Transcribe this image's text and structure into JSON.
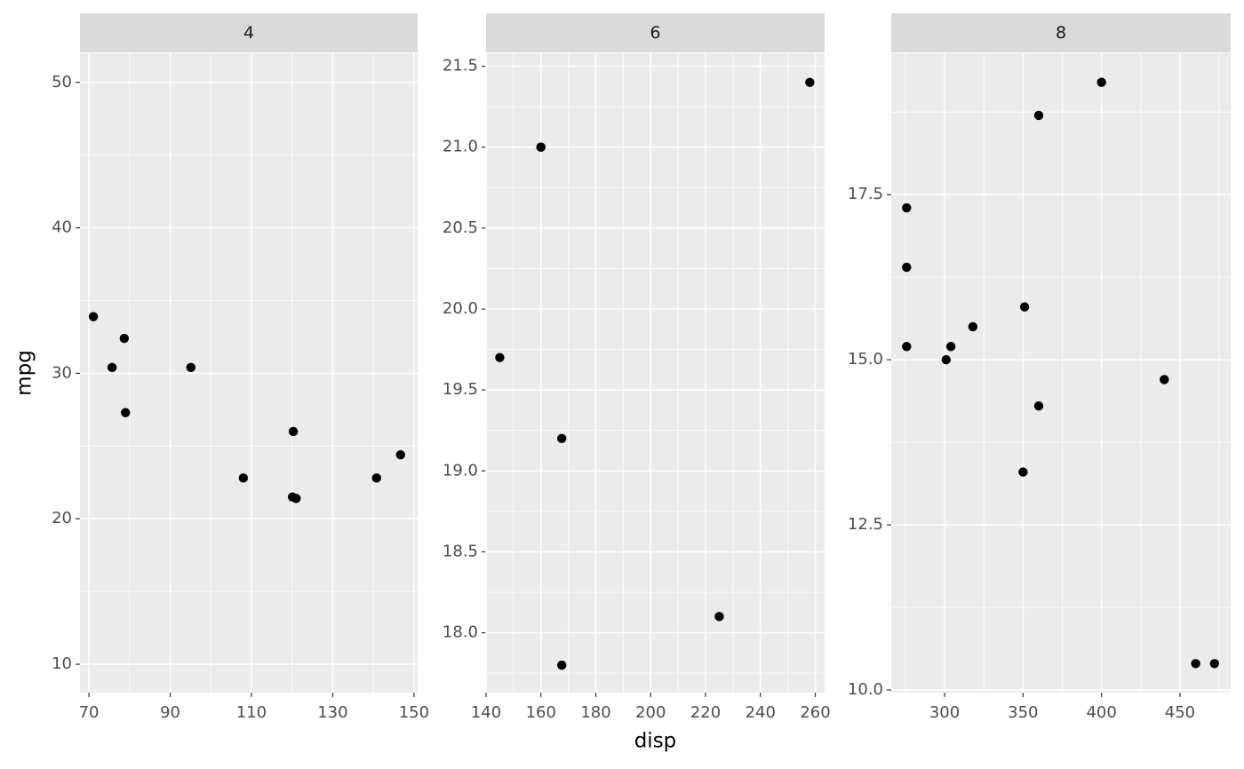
{
  "chart_data": [
    {
      "type": "scatter",
      "title": "4",
      "ylabel": "mpg",
      "color": "#000000",
      "x": [
        108,
        146.7,
        140.8,
        78.7,
        75.7,
        71.1,
        120.1,
        79.0,
        120.3,
        95.1,
        121.0
      ],
      "y": [
        22.8,
        24.4,
        22.8,
        32.4,
        30.4,
        33.9,
        21.5,
        27.3,
        26.0,
        30.4,
        21.4
      ],
      "xlim": [
        67.8,
        150.9
      ],
      "ylim": [
        8.05,
        52.0
      ],
      "xticks": [
        70,
        90,
        110,
        130,
        150
      ],
      "xminor": [
        80,
        100,
        120,
        140
      ],
      "yticks": [
        10,
        20,
        30,
        40,
        50
      ],
      "yminor": [
        15,
        25,
        35,
        45
      ],
      "grid": true
    },
    {
      "type": "scatter",
      "title": "6",
      "xlabel": "disp",
      "color": "#000000",
      "x": [
        160,
        160,
        258,
        225,
        167.6,
        167.6,
        145
      ],
      "y": [
        21.0,
        21.0,
        21.4,
        18.1,
        19.2,
        17.8,
        19.7
      ],
      "xlim": [
        140.0,
        263.4
      ],
      "ylim": [
        17.63,
        21.58
      ],
      "xticks": [
        140,
        160,
        180,
        200,
        220,
        240,
        260
      ],
      "xminor": [
        150,
        170,
        190,
        210,
        230,
        250
      ],
      "yticks": [
        {
          "value": 18,
          "label": "18.0"
        },
        {
          "value": 18.5,
          "label": "18.5"
        },
        {
          "value": 19,
          "label": "19.0"
        },
        {
          "value": 19.5,
          "label": "19.5"
        },
        {
          "value": 20,
          "label": "20.0"
        },
        {
          "value": 20.5,
          "label": "20.5"
        },
        {
          "value": 21,
          "label": "21.0"
        },
        {
          "value": 21.5,
          "label": "21.5"
        }
      ],
      "yminor": [
        17.75,
        18.25,
        18.75,
        19.25,
        19.75,
        20.25,
        20.75,
        21.25
      ],
      "grid": true
    },
    {
      "type": "scatter",
      "title": "8",
      "color": "#000000",
      "x": [
        360,
        360,
        275.8,
        275.8,
        275.8,
        472,
        460,
        440,
        318,
        304,
        350,
        400,
        351,
        301
      ],
      "y": [
        18.7,
        14.3,
        16.4,
        17.3,
        15.2,
        10.4,
        10.4,
        14.7,
        15.5,
        15.2,
        13.3,
        19.2,
        15.8,
        15.0
      ],
      "xlim": [
        266.0,
        482.3
      ],
      "ylim": [
        9.96,
        19.64
      ],
      "xticks": [
        300,
        350,
        400,
        450
      ],
      "xminor": [
        275,
        325,
        375,
        425,
        475
      ],
      "yticks": [
        {
          "value": 10,
          "label": "10.0"
        },
        {
          "value": 12.5,
          "label": "12.5"
        },
        {
          "value": 15,
          "label": "15.0"
        },
        {
          "value": 17.5,
          "label": "17.5"
        }
      ],
      "yminor": [
        11.25,
        13.75,
        16.25,
        18.75
      ],
      "grid": true
    }
  ]
}
